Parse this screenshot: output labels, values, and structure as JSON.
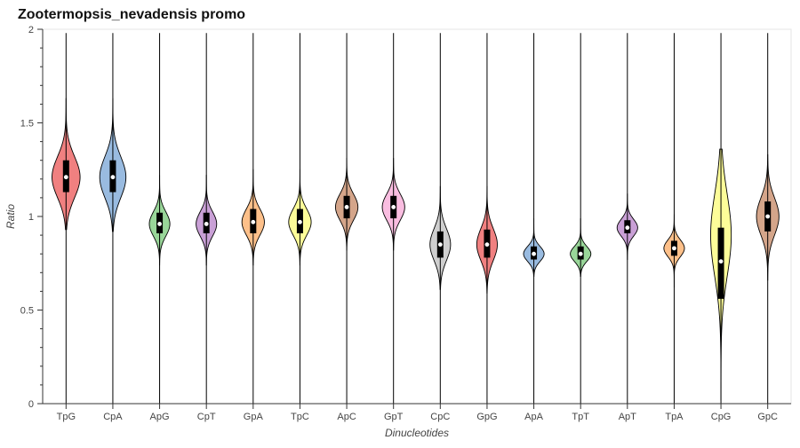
{
  "chart_data": {
    "type": "violin",
    "title": "Zootermopsis_nevadensis promo",
    "xlabel": "Dinucleotides",
    "ylabel": "Ratio",
    "ylim": [
      0,
      2
    ],
    "yticks": [
      0,
      0.5,
      1,
      1.5,
      2
    ],
    "ytick_labels": [
      "0",
      "0.5",
      "1",
      "1.5",
      "2"
    ],
    "categories": [
      "TpG",
      "CpA",
      "ApG",
      "CpT",
      "GpA",
      "TpC",
      "ApC",
      "GpT",
      "CpC",
      "GpG",
      "ApA",
      "TpT",
      "ApT",
      "TpA",
      "CpG",
      "GpC"
    ],
    "colors": [
      "#f08080",
      "#99bbe0",
      "#99d699",
      "#c9a0d6",
      "#fdc08a",
      "#fdfd99",
      "#d4a58a",
      "#f9bde0",
      "#cfcfcf",
      "#f08080",
      "#99bbe0",
      "#99d699",
      "#c9a0d6",
      "#fdc08a",
      "#fdfd99",
      "#d4a58a"
    ],
    "series": [
      {
        "name": "TpG",
        "min": 0.0,
        "max": 1.98,
        "median": 1.21,
        "q1": 1.13,
        "q3": 1.3,
        "mode": 1.21,
        "sigma": 0.11,
        "maxwidth": 0.3,
        "lo_extent": 0.93,
        "hi_extent": 1.63
      },
      {
        "name": "CpA",
        "min": 0.0,
        "max": 1.98,
        "median": 1.21,
        "q1": 1.13,
        "q3": 1.3,
        "mode": 1.21,
        "sigma": 0.11,
        "maxwidth": 0.28,
        "lo_extent": 0.92,
        "hi_extent": 1.63
      },
      {
        "name": "ApG",
        "min": 0.0,
        "max": 1.98,
        "median": 0.96,
        "q1": 0.91,
        "q3": 1.02,
        "mode": 0.96,
        "sigma": 0.065,
        "maxwidth": 0.22,
        "lo_extent": 0.74,
        "hi_extent": 1.22
      },
      {
        "name": "CpT",
        "min": 0.0,
        "max": 1.98,
        "median": 0.96,
        "q1": 0.91,
        "q3": 1.02,
        "mode": 0.96,
        "sigma": 0.065,
        "maxwidth": 0.22,
        "lo_extent": 0.74,
        "hi_extent": 1.22
      },
      {
        "name": "GpA",
        "min": 0.0,
        "max": 1.98,
        "median": 0.97,
        "q1": 0.91,
        "q3": 1.04,
        "mode": 0.97,
        "sigma": 0.07,
        "maxwidth": 0.24,
        "lo_extent": 0.74,
        "hi_extent": 1.25
      },
      {
        "name": "TpC",
        "min": 0.0,
        "max": 1.98,
        "median": 0.97,
        "q1": 0.91,
        "q3": 1.04,
        "mode": 0.97,
        "sigma": 0.07,
        "maxwidth": 0.24,
        "lo_extent": 0.74,
        "hi_extent": 1.25
      },
      {
        "name": "ApC",
        "min": 0.0,
        "max": 1.98,
        "median": 1.05,
        "q1": 0.99,
        "q3": 1.11,
        "mode": 1.05,
        "sigma": 0.07,
        "maxwidth": 0.24,
        "lo_extent": 0.82,
        "hi_extent": 1.31
      },
      {
        "name": "GpT",
        "min": 0.0,
        "max": 1.98,
        "median": 1.05,
        "q1": 0.99,
        "q3": 1.11,
        "mode": 1.05,
        "sigma": 0.07,
        "maxwidth": 0.24,
        "lo_extent": 0.82,
        "hi_extent": 1.31
      },
      {
        "name": "CpC",
        "min": 0.0,
        "max": 1.98,
        "median": 0.85,
        "q1": 0.78,
        "q3": 0.92,
        "mode": 0.85,
        "sigma": 0.085,
        "maxwidth": 0.22,
        "lo_extent": 0.61,
        "hi_extent": 1.16
      },
      {
        "name": "GpG",
        "min": 0.0,
        "max": 1.98,
        "median": 0.85,
        "q1": 0.78,
        "q3": 0.93,
        "mode": 0.85,
        "sigma": 0.085,
        "maxwidth": 0.22,
        "lo_extent": 0.59,
        "hi_extent": 1.16
      },
      {
        "name": "ApA",
        "min": 0.0,
        "max": 1.98,
        "median": 0.8,
        "q1": 0.77,
        "q3": 0.84,
        "mode": 0.8,
        "sigma": 0.04,
        "maxwidth": 0.22,
        "lo_extent": 0.68,
        "hi_extent": 0.99
      },
      {
        "name": "TpT",
        "min": 0.0,
        "max": 1.98,
        "median": 0.8,
        "q1": 0.77,
        "q3": 0.84,
        "mode": 0.8,
        "sigma": 0.04,
        "maxwidth": 0.22,
        "lo_extent": 0.68,
        "hi_extent": 0.99
      },
      {
        "name": "ApT",
        "min": 0.0,
        "max": 1.98,
        "median": 0.94,
        "q1": 0.91,
        "q3": 0.98,
        "mode": 0.94,
        "sigma": 0.045,
        "maxwidth": 0.22,
        "lo_extent": 0.77,
        "hi_extent": 1.12
      },
      {
        "name": "TpA",
        "min": 0.0,
        "max": 1.98,
        "median": 0.83,
        "q1": 0.79,
        "q3": 0.87,
        "mode": 0.83,
        "sigma": 0.045,
        "maxwidth": 0.22,
        "lo_extent": 0.62,
        "hi_extent": 1.01
      },
      {
        "name": "CpG",
        "min": 0.0,
        "max": 1.98,
        "median": 0.76,
        "q1": 0.56,
        "q3": 0.94,
        "mode": 0.9,
        "sigma": 0.22,
        "maxwidth": 0.22,
        "lo_extent": 0.02,
        "hi_extent": 1.36
      },
      {
        "name": "GpC",
        "min": 0.0,
        "max": 1.98,
        "median": 1.0,
        "q1": 0.92,
        "q3": 1.08,
        "mode": 1.0,
        "sigma": 0.1,
        "maxwidth": 0.24,
        "lo_extent": 0.66,
        "hi_extent": 1.33
      }
    ]
  }
}
